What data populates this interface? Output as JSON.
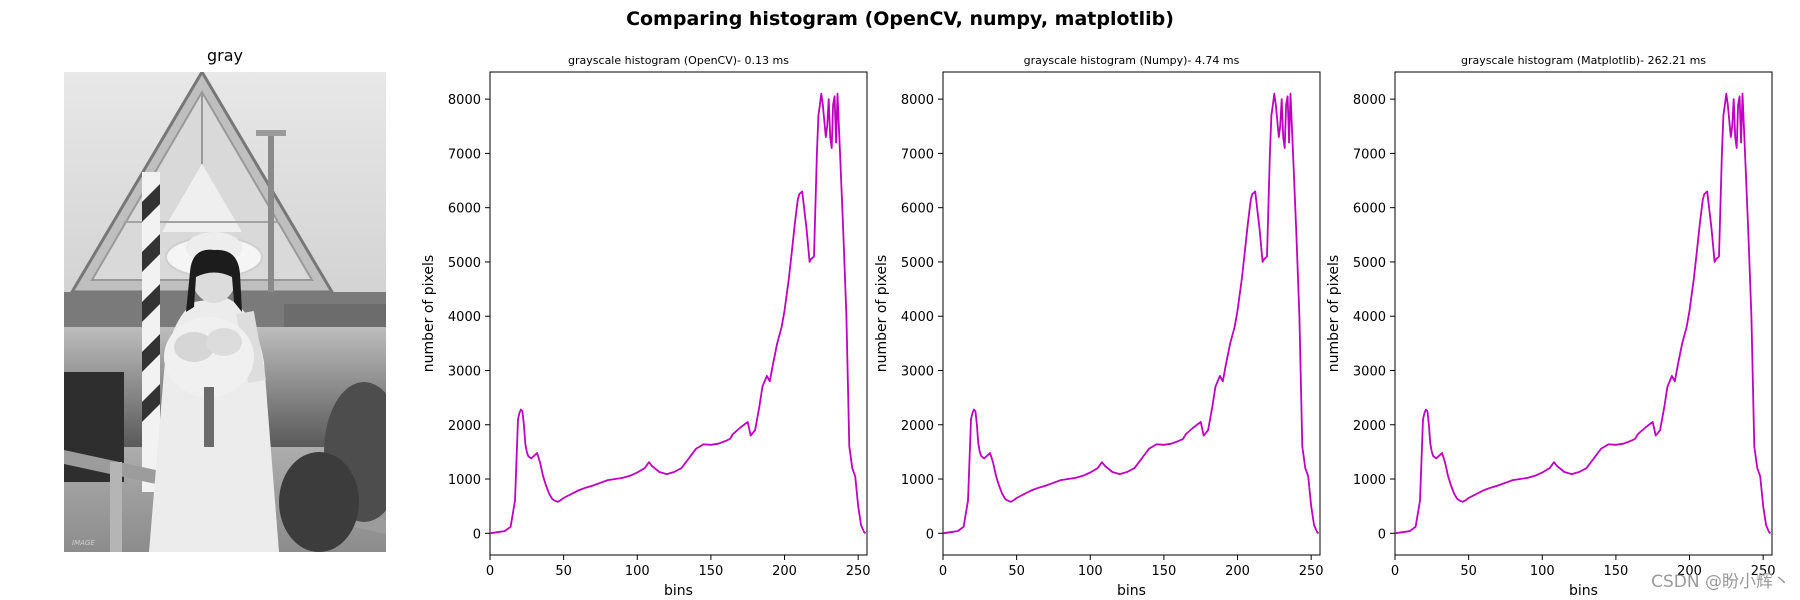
{
  "suptitle": "Comparing histogram (OpenCV, numpy, matplotlib)",
  "image_panel": {
    "title": "gray",
    "corner_text": "IMAGE"
  },
  "credit": "CSDN @盼小辉丶",
  "line_color": "#c000c0",
  "chart_data": [
    {
      "type": "line",
      "title": "grayscale histogram (OpenCV)-  0.13 ms",
      "xlabel": "bins",
      "ylabel": "number of pixels",
      "xlim": [
        0,
        256
      ],
      "ylim": [
        -400,
        8500
      ],
      "xticks": [
        0,
        50,
        100,
        150,
        200,
        250
      ],
      "yticks": [
        0,
        1000,
        2000,
        3000,
        4000,
        5000,
        6000,
        7000,
        8000
      ],
      "grid": false,
      "series": [
        {
          "x": [
            0,
            5,
            10,
            14,
            17,
            19,
            20,
            21,
            22,
            23,
            24,
            25,
            26,
            28,
            30,
            32,
            34,
            36,
            38,
            40,
            42,
            44,
            46,
            48,
            50,
            55,
            60,
            65,
            70,
            75,
            80,
            85,
            90,
            95,
            100,
            105,
            108,
            110,
            115,
            120,
            125,
            130,
            135,
            140,
            145,
            150,
            155,
            160,
            163,
            165,
            170,
            175,
            177,
            180,
            183,
            185,
            188,
            190,
            192,
            195,
            198,
            200,
            203,
            205,
            207,
            209,
            210,
            212,
            215,
            217,
            218,
            220,
            222,
            223,
            224,
            225,
            226,
            227,
            228,
            229,
            230,
            231,
            232,
            233,
            234,
            235,
            236,
            238,
            240,
            242,
            244,
            246,
            248,
            250,
            252,
            254,
            255
          ],
          "y": [
            0,
            20,
            40,
            120,
            600,
            2100,
            2220,
            2280,
            2250,
            2000,
            1650,
            1500,
            1420,
            1380,
            1430,
            1480,
            1300,
            1060,
            880,
            740,
            640,
            600,
            580,
            610,
            650,
            720,
            790,
            840,
            880,
            930,
            980,
            1000,
            1020,
            1060,
            1120,
            1200,
            1310,
            1240,
            1130,
            1090,
            1130,
            1200,
            1380,
            1560,
            1640,
            1630,
            1650,
            1700,
            1740,
            1830,
            1950,
            2050,
            1800,
            1900,
            2350,
            2700,
            2900,
            2800,
            3100,
            3500,
            3800,
            4100,
            4700,
            5200,
            5700,
            6150,
            6250,
            6300,
            5600,
            5000,
            5050,
            5100,
            7000,
            7700,
            7900,
            8100,
            7900,
            7600,
            7300,
            7500,
            8000,
            7300,
            7100,
            7900,
            8050,
            7200,
            8100,
            6800,
            5500,
            4000,
            1600,
            1200,
            1050,
            500,
            150,
            20,
            0
          ]
        }
      ]
    },
    {
      "type": "line",
      "title": "grayscale histogram (Numpy)-  4.74 ms",
      "xlabel": "bins",
      "ylabel": "number of pixels",
      "xlim": [
        0,
        256
      ],
      "ylim": [
        -400,
        8500
      ],
      "xticks": [
        0,
        50,
        100,
        150,
        200,
        250
      ],
      "yticks": [
        0,
        1000,
        2000,
        3000,
        4000,
        5000,
        6000,
        7000,
        8000
      ],
      "grid": false,
      "series": [
        {
          "x": [
            0,
            5,
            10,
            14,
            17,
            19,
            20,
            21,
            22,
            23,
            24,
            25,
            26,
            28,
            30,
            32,
            34,
            36,
            38,
            40,
            42,
            44,
            46,
            48,
            50,
            55,
            60,
            65,
            70,
            75,
            80,
            85,
            90,
            95,
            100,
            105,
            108,
            110,
            115,
            120,
            125,
            130,
            135,
            140,
            145,
            150,
            155,
            160,
            163,
            165,
            170,
            175,
            177,
            180,
            183,
            185,
            188,
            190,
            192,
            195,
            198,
            200,
            203,
            205,
            207,
            209,
            210,
            212,
            215,
            217,
            218,
            220,
            222,
            223,
            224,
            225,
            226,
            227,
            228,
            229,
            230,
            231,
            232,
            233,
            234,
            235,
            236,
            238,
            240,
            242,
            244,
            246,
            248,
            250,
            252,
            254,
            255
          ],
          "y": [
            0,
            20,
            40,
            120,
            600,
            2100,
            2220,
            2280,
            2250,
            2000,
            1650,
            1500,
            1420,
            1380,
            1430,
            1480,
            1300,
            1060,
            880,
            740,
            640,
            600,
            580,
            610,
            650,
            720,
            790,
            840,
            880,
            930,
            980,
            1000,
            1020,
            1060,
            1120,
            1200,
            1310,
            1240,
            1130,
            1090,
            1130,
            1200,
            1380,
            1560,
            1640,
            1630,
            1650,
            1700,
            1740,
            1830,
            1950,
            2050,
            1800,
            1900,
            2350,
            2700,
            2900,
            2800,
            3100,
            3500,
            3800,
            4100,
            4700,
            5200,
            5700,
            6150,
            6250,
            6300,
            5600,
            5000,
            5050,
            5100,
            7000,
            7700,
            7900,
            8100,
            7900,
            7600,
            7300,
            7500,
            8000,
            7300,
            7100,
            7900,
            8050,
            7200,
            8100,
            6800,
            5500,
            4000,
            1600,
            1200,
            1050,
            500,
            150,
            20,
            0
          ]
        }
      ]
    },
    {
      "type": "line",
      "title": "grayscale histogram (Matplotlib)- 262.21 ms",
      "xlabel": "bins",
      "ylabel": "number of pixels",
      "xlim": [
        0,
        256
      ],
      "ylim": [
        -400,
        8500
      ],
      "xticks": [
        0,
        50,
        100,
        150,
        200,
        250
      ],
      "yticks": [
        0,
        1000,
        2000,
        3000,
        4000,
        5000,
        6000,
        7000,
        8000
      ],
      "grid": false,
      "series": [
        {
          "x": [
            0,
            5,
            10,
            14,
            17,
            19,
            20,
            21,
            22,
            23,
            24,
            25,
            26,
            28,
            30,
            32,
            34,
            36,
            38,
            40,
            42,
            44,
            46,
            48,
            50,
            55,
            60,
            65,
            70,
            75,
            80,
            85,
            90,
            95,
            100,
            105,
            108,
            110,
            115,
            120,
            125,
            130,
            135,
            140,
            145,
            150,
            155,
            160,
            163,
            165,
            170,
            175,
            177,
            180,
            183,
            185,
            188,
            190,
            192,
            195,
            198,
            200,
            203,
            205,
            207,
            209,
            210,
            212,
            215,
            217,
            218,
            220,
            222,
            223,
            224,
            225,
            226,
            227,
            228,
            229,
            230,
            231,
            232,
            233,
            234,
            235,
            236,
            238,
            240,
            242,
            244,
            246,
            248,
            250,
            252,
            254,
            255
          ],
          "y": [
            0,
            20,
            40,
            120,
            600,
            2100,
            2220,
            2280,
            2250,
            2000,
            1650,
            1500,
            1420,
            1380,
            1430,
            1480,
            1300,
            1060,
            880,
            740,
            640,
            600,
            580,
            610,
            650,
            720,
            790,
            840,
            880,
            930,
            980,
            1000,
            1020,
            1060,
            1120,
            1200,
            1310,
            1240,
            1130,
            1090,
            1130,
            1200,
            1380,
            1560,
            1640,
            1630,
            1650,
            1700,
            1740,
            1830,
            1950,
            2050,
            1800,
            1900,
            2350,
            2700,
            2900,
            2800,
            3100,
            3500,
            3800,
            4100,
            4700,
            5200,
            5700,
            6150,
            6250,
            6300,
            5600,
            5000,
            5050,
            5100,
            7000,
            7700,
            7900,
            8100,
            7900,
            7600,
            7300,
            7500,
            8000,
            7300,
            7100,
            7900,
            8050,
            7200,
            8100,
            6800,
            5500,
            4000,
            1600,
            1200,
            1050,
            500,
            150,
            20,
            0
          ]
        }
      ]
    }
  ]
}
